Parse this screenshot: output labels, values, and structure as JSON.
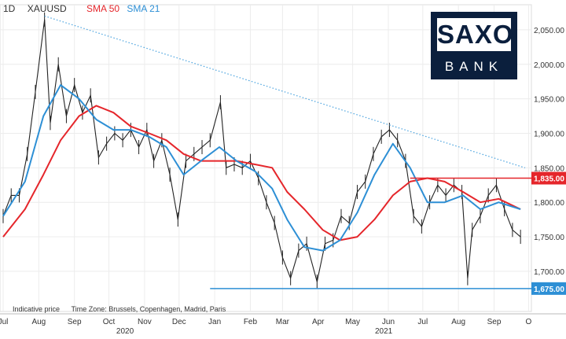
{
  "header": {
    "interval": "1D",
    "symbol": "XAUUSD",
    "sma50_label": "SMA 50",
    "sma21_label": "SMA 21"
  },
  "colors": {
    "price": "#222222",
    "sma50": "#e5262b",
    "sma21": "#2d8fd5",
    "trendline": "#4aa3df",
    "support": "#2d8fd5",
    "resistance": "#e5262b",
    "logo_bg": "#0b1f3d"
  },
  "logo": {
    "top": "SAXO",
    "bottom": "BANK"
  },
  "footer": {
    "indicative": "Indicative price",
    "timezone": "Time Zone: Brussels, Copenhagen, Madrid, Paris"
  },
  "chart_data": {
    "type": "line",
    "symbol": "XAUUSD",
    "interval": "1D",
    "ylim": [
      1660,
      2075
    ],
    "x_range": [
      "2020-07-01",
      "2021-09-28"
    ],
    "grid": true,
    "y_ticks": [
      "2,050.00",
      "2,000.00",
      "1,950.00",
      "1,900.00",
      "1,850.00",
      "1,800.00",
      "1,750.00",
      "1,700.00"
    ],
    "y_tick_values": [
      2050,
      2000,
      1950,
      1900,
      1850,
      1800,
      1750,
      1700
    ],
    "x_ticks": [
      {
        "label": "Jul",
        "date": "2020-07-01"
      },
      {
        "label": "Aug",
        "date": "2020-08-01"
      },
      {
        "label": "Sep",
        "date": "2020-09-01"
      },
      {
        "label": "Oct",
        "date": "2020-10-01"
      },
      {
        "label": "Nov",
        "date": "2020-11-01"
      },
      {
        "label": "Dec",
        "date": "2020-12-01"
      },
      {
        "label": "Jan",
        "date": "2021-01-01"
      },
      {
        "label": "Feb",
        "date": "2021-02-01"
      },
      {
        "label": "Mar",
        "date": "2021-03-01"
      },
      {
        "label": "Apr",
        "date": "2021-04-01"
      },
      {
        "label": "May",
        "date": "2021-05-01"
      },
      {
        "label": "Jun",
        "date": "2021-06-01"
      },
      {
        "label": "Jul",
        "date": "2021-07-01"
      },
      {
        "label": "Aug",
        "date": "2021-08-01"
      },
      {
        "label": "Sep",
        "date": "2021-09-01"
      },
      {
        "label": "O",
        "date": "2021-10-01"
      }
    ],
    "year_labels": [
      {
        "label": "2020",
        "date": "2020-10-15"
      },
      {
        "label": "2021",
        "date": "2021-05-28"
      }
    ],
    "price": [
      [
        "2020-07-01",
        1780
      ],
      [
        "2020-07-08",
        1810
      ],
      [
        "2020-07-15",
        1810
      ],
      [
        "2020-07-22",
        1870
      ],
      [
        "2020-07-29",
        1960
      ],
      [
        "2020-08-06",
        2065
      ],
      [
        "2020-08-11",
        1915
      ],
      [
        "2020-08-18",
        2000
      ],
      [
        "2020-08-25",
        1925
      ],
      [
        "2020-09-01",
        1970
      ],
      [
        "2020-09-08",
        1930
      ],
      [
        "2020-09-15",
        1955
      ],
      [
        "2020-09-22",
        1865
      ],
      [
        "2020-09-29",
        1885
      ],
      [
        "2020-10-06",
        1900
      ],
      [
        "2020-10-13",
        1890
      ],
      [
        "2020-10-20",
        1905
      ],
      [
        "2020-10-27",
        1880
      ],
      [
        "2020-11-03",
        1905
      ],
      [
        "2020-11-09",
        1860
      ],
      [
        "2020-11-16",
        1890
      ],
      [
        "2020-11-23",
        1840
      ],
      [
        "2020-11-30",
        1775
      ],
      [
        "2020-12-07",
        1860
      ],
      [
        "2020-12-14",
        1870
      ],
      [
        "2020-12-21",
        1880
      ],
      [
        "2020-12-28",
        1890
      ],
      [
        "2021-01-06",
        1945
      ],
      [
        "2021-01-11",
        1850
      ],
      [
        "2021-01-18",
        1855
      ],
      [
        "2021-01-25",
        1850
      ],
      [
        "2021-02-01",
        1860
      ],
      [
        "2021-02-08",
        1835
      ],
      [
        "2021-02-15",
        1800
      ],
      [
        "2021-02-22",
        1770
      ],
      [
        "2021-03-01",
        1720
      ],
      [
        "2021-03-08",
        1690
      ],
      [
        "2021-03-15",
        1730
      ],
      [
        "2021-03-22",
        1740
      ],
      [
        "2021-03-31",
        1685
      ],
      [
        "2021-04-07",
        1740
      ],
      [
        "2021-04-14",
        1745
      ],
      [
        "2021-04-21",
        1780
      ],
      [
        "2021-04-28",
        1770
      ],
      [
        "2021-05-05",
        1815
      ],
      [
        "2021-05-12",
        1830
      ],
      [
        "2021-05-19",
        1870
      ],
      [
        "2021-05-26",
        1895
      ],
      [
        "2021-06-02",
        1905
      ],
      [
        "2021-06-09",
        1890
      ],
      [
        "2021-06-16",
        1860
      ],
      [
        "2021-06-23",
        1780
      ],
      [
        "2021-06-30",
        1765
      ],
      [
        "2021-07-07",
        1800
      ],
      [
        "2021-07-14",
        1825
      ],
      [
        "2021-07-21",
        1810
      ],
      [
        "2021-07-28",
        1825
      ],
      [
        "2021-08-04",
        1815
      ],
      [
        "2021-08-09",
        1690
      ],
      [
        "2021-08-13",
        1760
      ],
      [
        "2021-08-20",
        1780
      ],
      [
        "2021-08-27",
        1810
      ],
      [
        "2021-09-03",
        1825
      ],
      [
        "2021-09-10",
        1790
      ],
      [
        "2021-09-17",
        1760
      ],
      [
        "2021-09-24",
        1750
      ]
    ],
    "series": [
      {
        "name": "SMA 50",
        "color": "#e5262b",
        "points": [
          [
            "2020-07-01",
            1750
          ],
          [
            "2020-07-20",
            1790
          ],
          [
            "2020-08-05",
            1840
          ],
          [
            "2020-08-20",
            1890
          ],
          [
            "2020-09-05",
            1925
          ],
          [
            "2020-09-20",
            1940
          ],
          [
            "2020-10-05",
            1930
          ],
          [
            "2020-10-20",
            1910
          ],
          [
            "2020-11-05",
            1900
          ],
          [
            "2020-11-20",
            1890
          ],
          [
            "2020-12-05",
            1870
          ],
          [
            "2020-12-20",
            1860
          ],
          [
            "2021-01-05",
            1860
          ],
          [
            "2021-01-20",
            1860
          ],
          [
            "2021-02-05",
            1855
          ],
          [
            "2021-02-20",
            1850
          ],
          [
            "2021-03-05",
            1815
          ],
          [
            "2021-03-20",
            1790
          ],
          [
            "2021-04-05",
            1760
          ],
          [
            "2021-04-20",
            1745
          ],
          [
            "2021-05-05",
            1750
          ],
          [
            "2021-05-20",
            1775
          ],
          [
            "2021-06-05",
            1810
          ],
          [
            "2021-06-20",
            1830
          ],
          [
            "2021-07-05",
            1835
          ],
          [
            "2021-07-20",
            1830
          ],
          [
            "2021-08-05",
            1815
          ],
          [
            "2021-08-20",
            1800
          ],
          [
            "2021-09-05",
            1805
          ],
          [
            "2021-09-24",
            1790
          ]
        ]
      },
      {
        "name": "SMA 21",
        "color": "#2d8fd5",
        "points": [
          [
            "2020-07-01",
            1780
          ],
          [
            "2020-07-20",
            1830
          ],
          [
            "2020-08-05",
            1925
          ],
          [
            "2020-08-20",
            1970
          ],
          [
            "2020-09-05",
            1950
          ],
          [
            "2020-09-20",
            1920
          ],
          [
            "2020-10-05",
            1905
          ],
          [
            "2020-10-20",
            1905
          ],
          [
            "2020-11-05",
            1895
          ],
          [
            "2020-11-20",
            1880
          ],
          [
            "2020-12-05",
            1840
          ],
          [
            "2020-12-20",
            1860
          ],
          [
            "2021-01-05",
            1880
          ],
          [
            "2021-01-20",
            1860
          ],
          [
            "2021-02-05",
            1845
          ],
          [
            "2021-02-20",
            1820
          ],
          [
            "2021-03-05",
            1775
          ],
          [
            "2021-03-20",
            1735
          ],
          [
            "2021-04-05",
            1730
          ],
          [
            "2021-04-20",
            1745
          ],
          [
            "2021-05-05",
            1785
          ],
          [
            "2021-05-20",
            1840
          ],
          [
            "2021-06-05",
            1885
          ],
          [
            "2021-06-20",
            1850
          ],
          [
            "2021-07-05",
            1800
          ],
          [
            "2021-07-20",
            1800
          ],
          [
            "2021-08-05",
            1810
          ],
          [
            "2021-08-20",
            1790
          ],
          [
            "2021-09-05",
            1800
          ],
          [
            "2021-09-24",
            1790
          ]
        ]
      }
    ],
    "trendline": {
      "from": [
        "2020-08-06",
        2070
      ],
      "to": [
        "2021-09-28",
        1850
      ],
      "style": "dotted"
    },
    "levels": [
      {
        "value": 1835,
        "label": "1,835.00",
        "color": "#e5262b",
        "from": "2021-06-20"
      },
      {
        "value": 1675,
        "label": "1,675.00",
        "color": "#2d8fd5",
        "from": "2020-12-28"
      }
    ]
  }
}
